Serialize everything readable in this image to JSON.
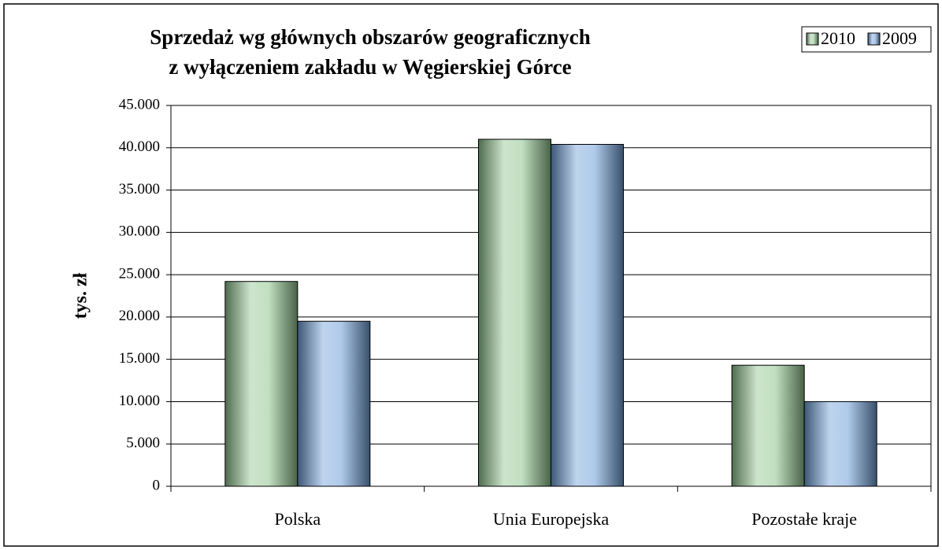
{
  "chart_data": {
    "type": "bar",
    "title": [
      "Sprzedaż wg głównych obszarów geograficznych",
      "z wyłączeniem zakładu w Węgierskiej Górce"
    ],
    "ylabel": "tys. zł",
    "categories": [
      "Polska",
      "Unia Europejska",
      "Pozostałe kraje"
    ],
    "series": [
      {
        "name": "2010",
        "color": "#8fc48f",
        "values": [
          24200,
          41000,
          14300
        ]
      },
      {
        "name": "2009",
        "color": "#6f9fd8",
        "values": [
          19500,
          40400,
          10000
        ]
      }
    ],
    "ylim": [
      0,
      45000
    ],
    "yticks": [
      0,
      {
        "value": 5000,
        "label": "5.000"
      },
      {
        "value": 10000,
        "label": "10.000"
      },
      {
        "value": 15000,
        "label": "15.000"
      },
      {
        "value": 20000,
        "label": "20.000"
      },
      {
        "value": 25000,
        "label": "25.000"
      },
      {
        "value": 30000,
        "label": "30.000"
      },
      {
        "value": 35000,
        "label": "35.000"
      },
      {
        "value": 40000,
        "label": "40.000"
      },
      {
        "value": 45000,
        "label": "45.000"
      }
    ],
    "grid": true,
    "legend": "top-right"
  }
}
